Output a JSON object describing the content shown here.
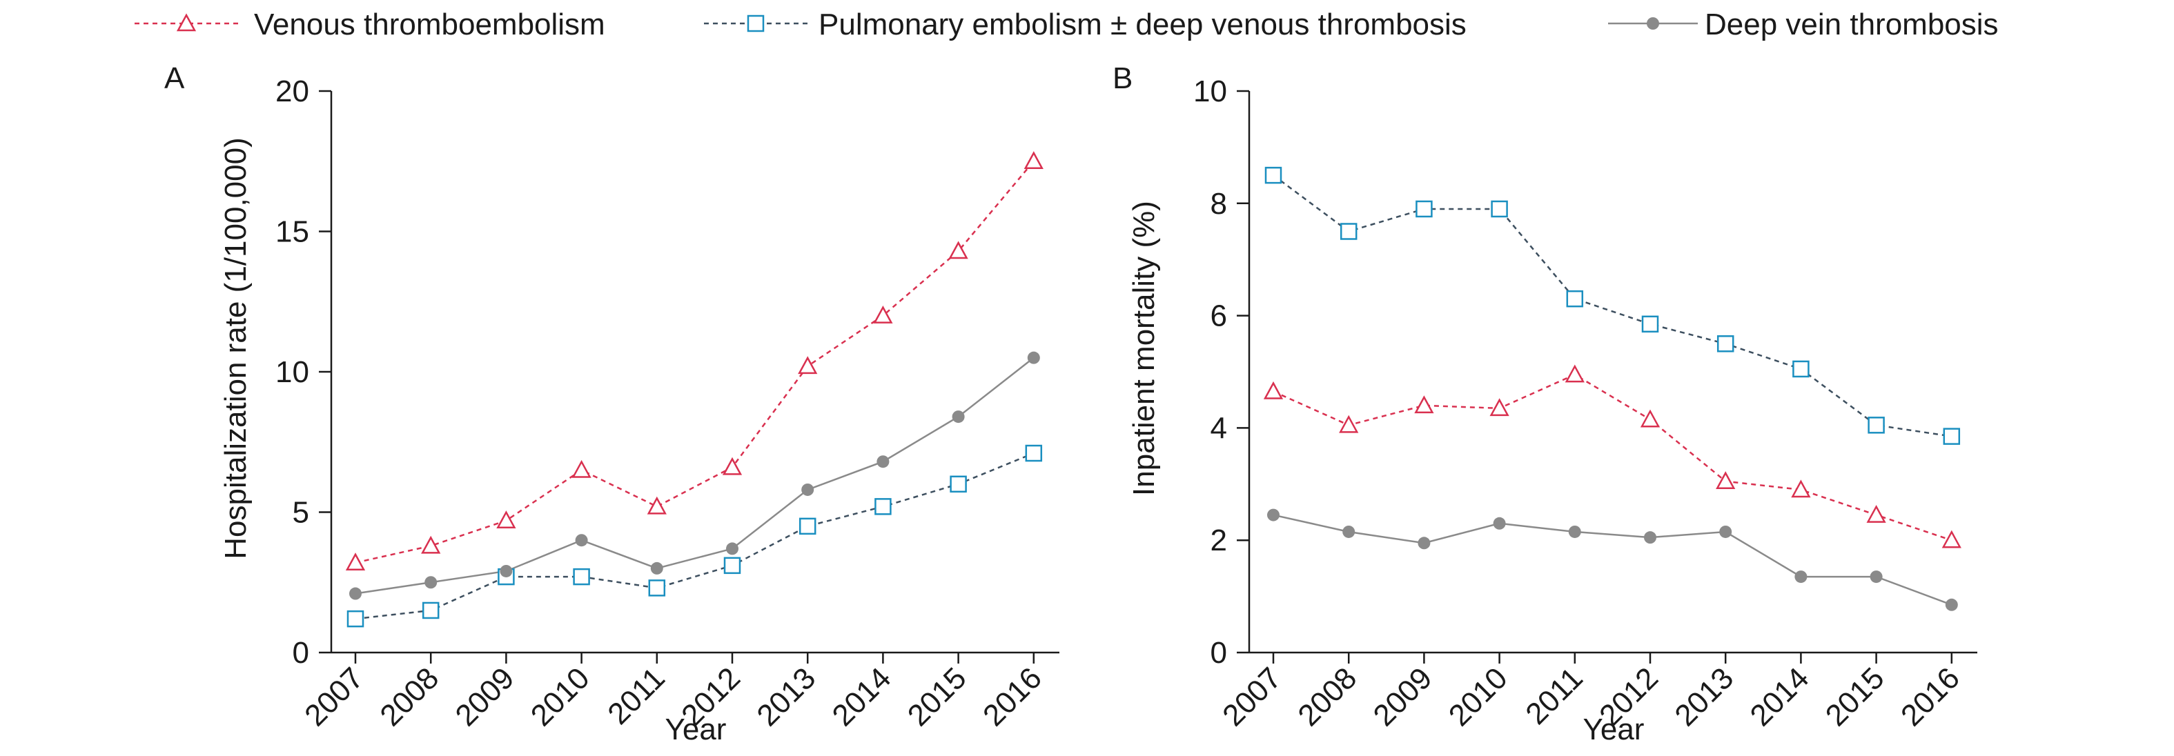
{
  "colors": {
    "venous": "#d9304f",
    "pulmonary": "#1a8fc0",
    "pulmonary_line": "#3d4f5f",
    "deep": "#8a8a8a"
  },
  "legend": [
    {
      "label": "Venous thromboembolism",
      "marker": "triangle-icon"
    },
    {
      "label": "Pulmonary embolism ± deep venous thrombosis",
      "marker": "square-icon"
    },
    {
      "label": "Deep vein thrombosis",
      "marker": "circle-icon"
    }
  ],
  "chart_data": [
    {
      "type": "line",
      "panel_label": "A",
      "xlabel": "Year",
      "ylabel": "Hospitalization rate (1/100,000)",
      "categories": [
        "2007",
        "2008",
        "2009",
        "2010",
        "2011",
        "2012",
        "2013",
        "2014",
        "2015",
        "2016"
      ],
      "ylim": [
        0,
        20
      ],
      "yticks": [
        0,
        5,
        10,
        15,
        20
      ],
      "grid": false,
      "series": [
        {
          "name": "Venous thromboembolism",
          "values": [
            3.2,
            3.8,
            4.7,
            6.5,
            5.2,
            6.6,
            10.2,
            12.0,
            14.3,
            17.5
          ]
        },
        {
          "name": "Pulmonary embolism ± deep venous thrombosis",
          "values": [
            1.2,
            1.5,
            2.7,
            2.7,
            2.3,
            3.1,
            4.5,
            5.2,
            6.0,
            7.1
          ]
        },
        {
          "name": "Deep vein thrombosis",
          "values": [
            2.1,
            2.5,
            2.9,
            4.0,
            3.0,
            3.7,
            5.8,
            6.8,
            8.4,
            10.5
          ]
        }
      ]
    },
    {
      "type": "line",
      "panel_label": "B",
      "xlabel": "Year",
      "ylabel": "Inpatient mortality (%)",
      "categories": [
        "2007",
        "2008",
        "2009",
        "2010",
        "2011",
        "2012",
        "2013",
        "2014",
        "2015",
        "2016"
      ],
      "ylim": [
        0,
        10
      ],
      "yticks": [
        0,
        2,
        4,
        6,
        8,
        10
      ],
      "grid": false,
      "series": [
        {
          "name": "Venous thromboembolism",
          "values": [
            4.65,
            4.05,
            4.4,
            4.35,
            4.95,
            4.15,
            3.05,
            2.9,
            2.45,
            2.0
          ]
        },
        {
          "name": "Pulmonary embolism ± deep venous thrombosis",
          "values": [
            8.5,
            7.5,
            7.9,
            7.9,
            6.3,
            5.85,
            5.5,
            5.05,
            4.05,
            3.85
          ]
        },
        {
          "name": "Deep vein thrombosis",
          "values": [
            2.45,
            2.15,
            1.95,
            2.3,
            2.15,
            2.05,
            2.15,
            1.35,
            1.35,
            0.85
          ]
        }
      ]
    }
  ]
}
